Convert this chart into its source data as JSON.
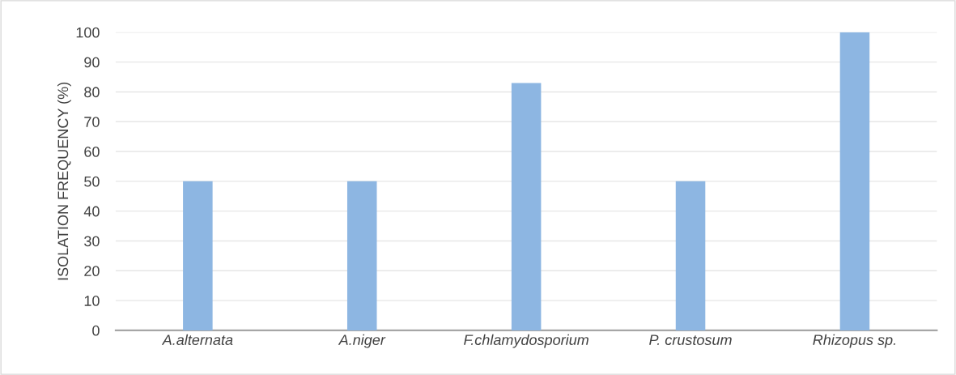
{
  "chart_data": {
    "type": "bar",
    "ylabel": "ISOLATION FREQUENCY (%)",
    "categories": [
      "A.alternata",
      "A.niger",
      "F.chlamydosporium",
      "P. crustosum",
      "Rhizopus sp."
    ],
    "values": [
      50,
      50,
      83,
      50,
      100
    ],
    "color": "#8db6e2",
    "ylim": [
      0,
      100
    ],
    "yticks": [
      0,
      10,
      20,
      30,
      40,
      50,
      60,
      70,
      80,
      90,
      100
    ],
    "grid": "y"
  }
}
